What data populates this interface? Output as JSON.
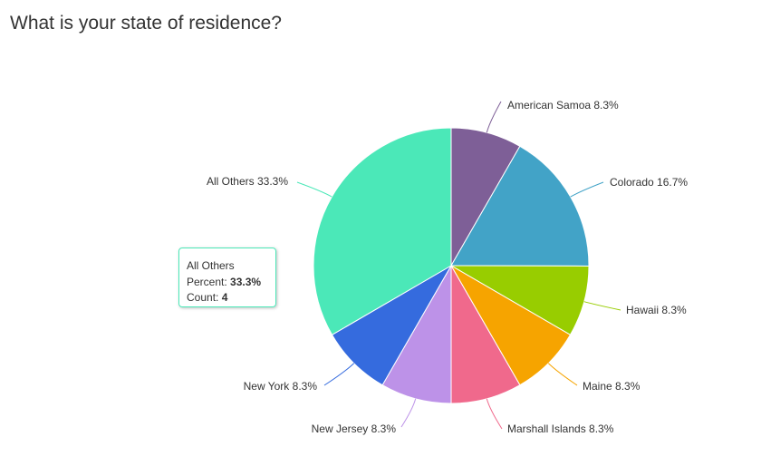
{
  "title": "What is your state of residence?",
  "chart_data": {
    "type": "pie",
    "title": "What is your state of residence?",
    "slices": [
      {
        "label": "American Samoa",
        "percent": "8.3%",
        "value": 8.3,
        "color": "#7e5f97"
      },
      {
        "label": "Colorado",
        "percent": "16.7%",
        "value": 16.7,
        "color": "#42a3c7"
      },
      {
        "label": "Hawaii",
        "percent": "8.3%",
        "value": 8.3,
        "color": "#98cd00"
      },
      {
        "label": "Maine",
        "percent": "8.3%",
        "value": 8.3,
        "color": "#f6a400"
      },
      {
        "label": "Marshall Islands",
        "percent": "8.3%",
        "value": 8.3,
        "color": "#f0698c"
      },
      {
        "label": "New Jersey",
        "percent": "8.3%",
        "value": 8.3,
        "color": "#bd92e8"
      },
      {
        "label": "New York",
        "percent": "8.3%",
        "value": 8.3,
        "color": "#356bde"
      },
      {
        "label": "All Others",
        "percent": "33.3%",
        "value": 33.3,
        "color": "#4be8b8"
      }
    ]
  },
  "tooltip": {
    "title": "All Others",
    "percent_label": "Percent: ",
    "percent_value": "33.3%",
    "count_label": "Count: ",
    "count_value": "4"
  }
}
